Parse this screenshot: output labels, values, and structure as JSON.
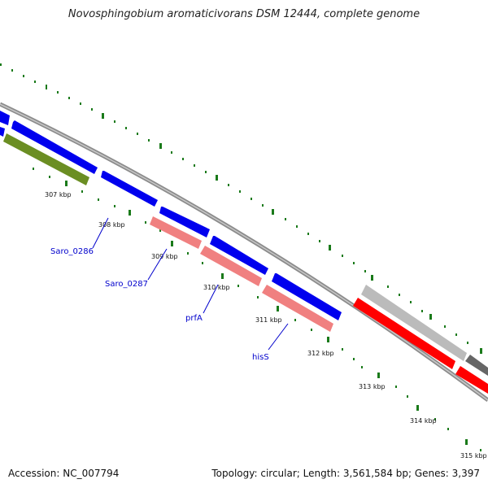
{
  "title": "Novosphingobium aromaticivorans DSM 12444, complete genome",
  "footer": {
    "accession": "Accession: NC_007794",
    "summary": "Topology: circular; Length: 3,561,584 bp; Genes: 3,397"
  },
  "colors": {
    "forward_cds": "#0000ee",
    "reverse_cds": "#ff0000",
    "rna": "#f08080",
    "other": "#6b8e23",
    "gray_feature": "#bbbbbb",
    "dark_gray_feature": "#666666",
    "backbone": "#8c8c8c",
    "tick": "#1a7a1a",
    "gene_label": "#0000cc"
  },
  "tick_labels": [
    "307 kbp",
    "308 kbp",
    "309 kbp",
    "310 kbp",
    "311 kbp",
    "312 kbp",
    "313 kbp",
    "314 kbp",
    "315 kbp"
  ],
  "gene_labels": [
    "Saro_0286",
    "Saro_0287",
    "prfA",
    "hisS"
  ]
}
